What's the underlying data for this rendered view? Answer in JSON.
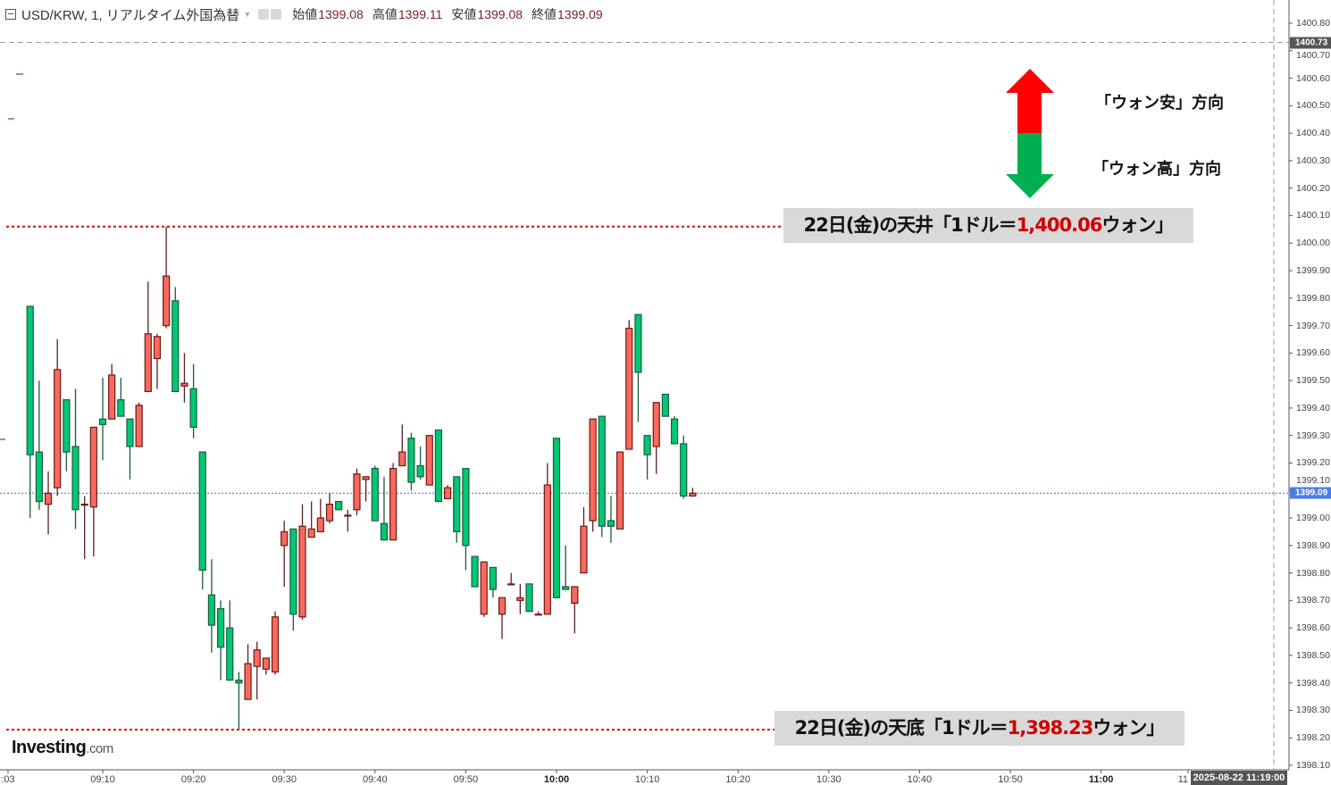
{
  "header": {
    "symbol": "USD/KRW, 1, リアルタイム外国為替",
    "open_label": "始値",
    "open": "1399.08",
    "high_label": "高値",
    "high": "1399.11",
    "low_label": "安値",
    "low": "1399.08",
    "close_label": "終値",
    "close": "1399.09"
  },
  "annotations": {
    "ceiling_prefix": "22日(金)の天井「1ドル＝",
    "ceiling_value": "1,400.06",
    "ceiling_suffix": "ウォン」",
    "floor_prefix": "22日(金)の天底「1ドル＝",
    "floor_value": "1,398.23",
    "floor_suffix": "ウォン」",
    "weak_won": "「ウォン安」方向",
    "strong_won": "「ウォン高」方向",
    "up_arrow_color": "#ff0000",
    "down_arrow_color": "#00b050"
  },
  "logo": {
    "main": "Investing",
    "suffix": ".com"
  },
  "price_markers": {
    "crosshair": "1400.73",
    "last": "1399.09",
    "last_color": "#4a7de8"
  },
  "x_axis": {
    "ticks": [
      {
        "label": ":03",
        "time": "09:03"
      },
      {
        "label": "09:10",
        "time": "09:10"
      },
      {
        "label": "09:20",
        "time": "09:20"
      },
      {
        "label": "09:30",
        "time": "09:30"
      },
      {
        "label": "09:40",
        "time": "09:40"
      },
      {
        "label": "09:50",
        "time": "09:50"
      },
      {
        "label": "10:00",
        "time": "10:00",
        "bold": true
      },
      {
        "label": "10:10",
        "time": "10:10"
      },
      {
        "label": "10:20",
        "time": "10:20"
      },
      {
        "label": "10:30",
        "time": "10:30"
      },
      {
        "label": "10:40",
        "time": "10:40"
      },
      {
        "label": "10:50",
        "time": "10:50"
      },
      {
        "label": "11:00",
        "time": "11:00",
        "bold": true
      },
      {
        "label": "11",
        "time": "11:10"
      }
    ],
    "crosshair_date": "2025-08-22 11:19:00"
  },
  "chart_data": {
    "type": "candlestick",
    "symbol": "USD/KRW",
    "interval": "1",
    "ylim": [
      1398.1,
      1400.8
    ],
    "y_ticks": [
      "1400.80",
      "1400.70",
      "1400.60",
      "1400.50",
      "1400.40",
      "1400.30",
      "1400.20",
      "1400.10",
      "1400.00",
      "1399.90",
      "1399.80",
      "1399.70",
      "1399.60",
      "1399.50",
      "1399.40",
      "1399.30",
      "1399.20",
      "1399.10",
      "1399.00",
      "1398.90",
      "1398.80",
      "1398.70",
      "1398.60",
      "1398.50",
      "1398.40",
      "1398.30",
      "1398.20",
      "1398.10"
    ],
    "up_color": "#f96a5c",
    "down_color": "#00c875",
    "reference_lines": [
      {
        "price": 1400.06,
        "color": "#e00000",
        "style": "dotted"
      },
      {
        "price": 1398.23,
        "color": "#e00000",
        "style": "dotted"
      },
      {
        "price": 1399.09,
        "color": "#3a66e0",
        "style": "dotted"
      },
      {
        "price": 1400.73,
        "color": "#999999",
        "style": "dashed"
      }
    ],
    "candles": [
      {
        "t": "09:02",
        "o": 1399.77,
        "h": 1399.77,
        "l": 1399.0,
        "c": 1399.23
      },
      {
        "t": "09:03",
        "o": 1399.24,
        "h": 1399.5,
        "l": 1399.03,
        "c": 1399.06
      },
      {
        "t": "09:04",
        "o": 1399.05,
        "h": 1399.17,
        "l": 1398.94,
        "c": 1399.09
      },
      {
        "t": "09:05",
        "o": 1399.11,
        "h": 1399.65,
        "l": 1399.08,
        "c": 1399.54
      },
      {
        "t": "09:06",
        "o": 1399.43,
        "h": 1399.43,
        "l": 1399.17,
        "c": 1399.24
      },
      {
        "t": "09:07",
        "o": 1399.26,
        "h": 1399.47,
        "l": 1398.96,
        "c": 1399.03
      },
      {
        "t": "09:08",
        "o": 1399.05,
        "h": 1399.08,
        "l": 1398.85,
        "c": 1399.05
      },
      {
        "t": "09:09",
        "o": 1399.04,
        "h": 1399.33,
        "l": 1398.86,
        "c": 1399.33
      },
      {
        "t": "09:10",
        "o": 1399.36,
        "h": 1399.51,
        "l": 1399.21,
        "c": 1399.34
      },
      {
        "t": "09:11",
        "o": 1399.36,
        "h": 1399.56,
        "l": 1399.36,
        "c": 1399.52
      },
      {
        "t": "09:12",
        "o": 1399.43,
        "h": 1399.51,
        "l": 1399.37,
        "c": 1399.37
      },
      {
        "t": "09:13",
        "o": 1399.36,
        "h": 1399.36,
        "l": 1399.14,
        "c": 1399.26
      },
      {
        "t": "09:14",
        "o": 1399.26,
        "h": 1399.42,
        "l": 1399.26,
        "c": 1399.41
      },
      {
        "t": "09:15",
        "o": 1399.46,
        "h": 1399.86,
        "l": 1399.46,
        "c": 1399.67
      },
      {
        "t": "09:16",
        "o": 1399.58,
        "h": 1399.67,
        "l": 1399.47,
        "c": 1399.66
      },
      {
        "t": "09:17",
        "o": 1399.7,
        "h": 1400.06,
        "l": 1399.69,
        "c": 1399.88
      },
      {
        "t": "09:18",
        "o": 1399.79,
        "h": 1399.84,
        "l": 1399.46,
        "c": 1399.46
      },
      {
        "t": "09:19",
        "o": 1399.48,
        "h": 1399.6,
        "l": 1399.42,
        "c": 1399.49
      },
      {
        "t": "09:20",
        "o": 1399.47,
        "h": 1399.56,
        "l": 1399.29,
        "c": 1399.33
      },
      {
        "t": "09:21",
        "o": 1399.24,
        "h": 1399.24,
        "l": 1398.74,
        "c": 1398.81
      },
      {
        "t": "09:22",
        "o": 1398.72,
        "h": 1398.85,
        "l": 1398.51,
        "c": 1398.61
      },
      {
        "t": "09:23",
        "o": 1398.67,
        "h": 1398.7,
        "l": 1398.41,
        "c": 1398.53
      },
      {
        "t": "09:24",
        "o": 1398.6,
        "h": 1398.7,
        "l": 1398.41,
        "c": 1398.41
      },
      {
        "t": "09:25",
        "o": 1398.41,
        "h": 1398.44,
        "l": 1398.23,
        "c": 1398.4
      },
      {
        "t": "09:26",
        "o": 1398.34,
        "h": 1398.54,
        "l": 1398.34,
        "c": 1398.47
      },
      {
        "t": "09:27",
        "o": 1398.46,
        "h": 1398.55,
        "l": 1398.34,
        "c": 1398.52
      },
      {
        "t": "09:28",
        "o": 1398.45,
        "h": 1398.49,
        "l": 1398.43,
        "c": 1398.49
      },
      {
        "t": "09:29",
        "o": 1398.44,
        "h": 1398.66,
        "l": 1398.43,
        "c": 1398.64
      },
      {
        "t": "09:30",
        "o": 1398.9,
        "h": 1398.99,
        "l": 1398.75,
        "c": 1398.95
      },
      {
        "t": "09:31",
        "o": 1398.96,
        "h": 1398.96,
        "l": 1398.59,
        "c": 1398.65
      },
      {
        "t": "09:32",
        "o": 1398.64,
        "h": 1399.05,
        "l": 1398.63,
        "c": 1398.97
      },
      {
        "t": "09:33",
        "o": 1398.93,
        "h": 1399.06,
        "l": 1398.93,
        "c": 1398.96
      },
      {
        "t": "09:34",
        "o": 1398.95,
        "h": 1399.07,
        "l": 1398.95,
        "c": 1399.0
      },
      {
        "t": "09:35",
        "o": 1398.99,
        "h": 1399.09,
        "l": 1398.98,
        "c": 1399.05
      },
      {
        "t": "09:36",
        "o": 1399.06,
        "h": 1399.06,
        "l": 1399.03,
        "c": 1399.03
      },
      {
        "t": "09:37",
        "o": 1399.01,
        "h": 1399.03,
        "l": 1398.95,
        "c": 1399.01
      },
      {
        "t": "09:38",
        "o": 1399.03,
        "h": 1399.18,
        "l": 1399.01,
        "c": 1399.16
      },
      {
        "t": "09:39",
        "o": 1399.14,
        "h": 1399.15,
        "l": 1399.06,
        "c": 1399.15
      },
      {
        "t": "09:40",
        "o": 1399.18,
        "h": 1399.19,
        "l": 1398.99,
        "c": 1398.99
      },
      {
        "t": "09:41",
        "o": 1398.98,
        "h": 1399.15,
        "l": 1398.92,
        "c": 1398.92
      },
      {
        "t": "09:42",
        "o": 1398.92,
        "h": 1399.2,
        "l": 1398.92,
        "c": 1399.18
      },
      {
        "t": "09:43",
        "o": 1399.19,
        "h": 1399.34,
        "l": 1399.19,
        "c": 1399.24
      },
      {
        "t": "09:44",
        "o": 1399.29,
        "h": 1399.31,
        "l": 1399.1,
        "c": 1399.13
      },
      {
        "t": "09:45",
        "o": 1399.19,
        "h": 1399.26,
        "l": 1399.14,
        "c": 1399.15
      },
      {
        "t": "09:46",
        "o": 1399.12,
        "h": 1399.3,
        "l": 1399.12,
        "c": 1399.3
      },
      {
        "t": "09:47",
        "o": 1399.32,
        "h": 1399.32,
        "l": 1399.06,
        "c": 1399.06
      },
      {
        "t": "09:48",
        "o": 1399.07,
        "h": 1399.12,
        "l": 1399.07,
        "c": 1399.11
      },
      {
        "t": "09:49",
        "o": 1399.15,
        "h": 1399.15,
        "l": 1398.91,
        "c": 1398.95
      },
      {
        "t": "09:50",
        "o": 1399.18,
        "h": 1399.18,
        "l": 1398.81,
        "c": 1398.9
      },
      {
        "t": "09:51",
        "o": 1398.86,
        "h": 1398.86,
        "l": 1398.75,
        "c": 1398.75
      },
      {
        "t": "09:52",
        "o": 1398.65,
        "h": 1398.84,
        "l": 1398.64,
        "c": 1398.84
      },
      {
        "t": "09:53",
        "o": 1398.82,
        "h": 1398.82,
        "l": 1398.71,
        "c": 1398.74
      },
      {
        "t": "09:54",
        "o": 1398.65,
        "h": 1398.71,
        "l": 1398.56,
        "c": 1398.71
      },
      {
        "t": "09:55",
        "o": 1398.76,
        "h": 1398.8,
        "l": 1398.76,
        "c": 1398.76
      },
      {
        "t": "09:56",
        "o": 1398.7,
        "h": 1398.76,
        "l": 1398.65,
        "c": 1398.71
      },
      {
        "t": "09:57",
        "o": 1398.76,
        "h": 1398.76,
        "l": 1398.66,
        "c": 1398.66
      },
      {
        "t": "09:58",
        "o": 1398.65,
        "h": 1398.66,
        "l": 1398.65,
        "c": 1398.65
      },
      {
        "t": "09:59",
        "o": 1398.65,
        "h": 1399.2,
        "l": 1398.65,
        "c": 1399.12
      },
      {
        "t": "10:00",
        "o": 1399.29,
        "h": 1399.29,
        "l": 1398.71,
        "c": 1398.71
      },
      {
        "t": "10:01",
        "o": 1398.75,
        "h": 1398.9,
        "l": 1398.74,
        "c": 1398.74
      },
      {
        "t": "10:02",
        "o": 1398.69,
        "h": 1398.75,
        "l": 1398.58,
        "c": 1398.75
      },
      {
        "t": "10:03",
        "o": 1398.8,
        "h": 1399.04,
        "l": 1398.8,
        "c": 1398.97
      },
      {
        "t": "10:04",
        "o": 1398.99,
        "h": 1399.36,
        "l": 1398.95,
        "c": 1399.36
      },
      {
        "t": "10:05",
        "o": 1399.37,
        "h": 1399.37,
        "l": 1398.93,
        "c": 1398.97
      },
      {
        "t": "10:06",
        "o": 1398.99,
        "h": 1399.08,
        "l": 1398.91,
        "c": 1398.97
      },
      {
        "t": "10:07",
        "o": 1398.96,
        "h": 1399.24,
        "l": 1398.96,
        "c": 1399.24
      },
      {
        "t": "10:08",
        "o": 1399.25,
        "h": 1399.72,
        "l": 1399.25,
        "c": 1399.69
      },
      {
        "t": "10:09",
        "o": 1399.74,
        "h": 1399.74,
        "l": 1399.35,
        "c": 1399.53
      },
      {
        "t": "10:10",
        "o": 1399.3,
        "h": 1399.3,
        "l": 1399.14,
        "c": 1399.23
      },
      {
        "t": "10:11",
        "o": 1399.26,
        "h": 1399.42,
        "l": 1399.16,
        "c": 1399.42
      },
      {
        "t": "10:12",
        "o": 1399.45,
        "h": 1399.45,
        "l": 1399.37,
        "c": 1399.37
      },
      {
        "t": "10:13",
        "o": 1399.36,
        "h": 1399.37,
        "l": 1399.27,
        "c": 1399.27
      },
      {
        "t": "10:14",
        "o": 1399.27,
        "h": 1399.3,
        "l": 1399.07,
        "c": 1399.08
      },
      {
        "t": "10:15",
        "o": 1399.08,
        "h": 1399.11,
        "l": 1399.08,
        "c": 1399.09
      }
    ]
  }
}
